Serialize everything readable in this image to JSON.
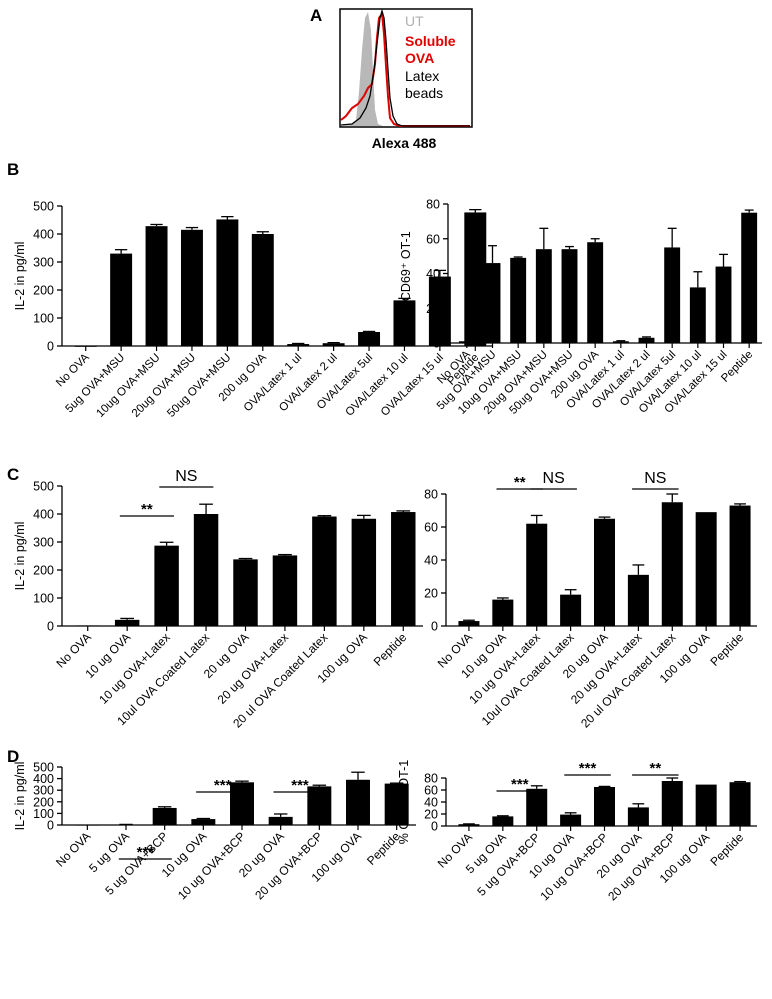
{
  "panel_labels": {
    "A": "A",
    "B": "B",
    "C": "C",
    "D": "D"
  },
  "colors": {
    "bar": "#000000",
    "soluble": "#e00000",
    "ut_fill": "#b8b8b8",
    "latex": "#000000"
  },
  "chart_data": [
    {
      "id": "A",
      "type": "histogram",
      "xlabel": "Alexa 488",
      "legend": [
        "UT",
        "Soluble",
        "OVA",
        "Latex",
        "beads"
      ],
      "series": [
        {
          "name": "UT",
          "style": "filled grey"
        },
        {
          "name": "Soluble OVA",
          "style": "red line"
        },
        {
          "name": "Latex beads",
          "style": "black line"
        }
      ]
    },
    {
      "id": "B-left",
      "type": "bar",
      "ylabel": "IL-2  in pg/ml",
      "ylim": [
        0,
        500
      ],
      "yticks": [
        "0",
        "100",
        "200",
        "300",
        "400",
        "500"
      ],
      "categories": [
        "No OVA",
        "5ug OVA+MSU",
        "10ug OVA+MSU",
        "20ug OVA+MSU",
        "50ug OVA+MSU",
        "200 ug OVA",
        "OVA/Latex 1 ul",
        "OVA/Latex 2 ul",
        "OVA/Latex 5ul",
        "OVA/Latex 10 ul",
        "OVA/Latex 15 ul",
        "Peptide"
      ],
      "values": [
        0,
        330,
        428,
        415,
        452,
        400,
        7,
        10,
        50,
        163,
        248,
        477
      ],
      "errors": [
        0,
        14,
        6,
        8,
        10,
        8,
        2,
        2,
        2,
        7,
        22,
        10
      ],
      "annotations": []
    },
    {
      "id": "B-right",
      "type": "bar",
      "ylabel": "% CD69⁺ OT-1",
      "ylim": [
        0,
        80
      ],
      "yticks": [
        "0",
        "20",
        "40",
        "60",
        "80"
      ],
      "categories": [
        "No OVA",
        "5ug OVA+MSU",
        "10ug OVA+MSU",
        "20ug OVA+MSU",
        "50ug OVA+MSU",
        "200 ug OVA",
        "OVA/Latex 1 ul",
        "OVA/Latex 2 ul",
        "OVA/Latex 5ul",
        "OVA/Latex 10 ul",
        "OVA/Latex 15 ul",
        "Peptide"
      ],
      "values": [
        1,
        46,
        49,
        54,
        54,
        58,
        1,
        3,
        55,
        32,
        44,
        75
      ],
      "errors": [
        0,
        10,
        0.5,
        12,
        1.5,
        2,
        0.3,
        0.5,
        11,
        9,
        7,
        1.5
      ],
      "annotations": []
    },
    {
      "id": "C-left",
      "type": "bar",
      "ylabel": "IL-2  in pg/ml",
      "ylim": [
        0,
        500
      ],
      "yticks": [
        "0",
        "100",
        "200",
        "300",
        "400",
        "500"
      ],
      "categories": [
        "No OVA",
        "10 ug OVA",
        "10 ug OVA+Latex",
        "10ul OVA Coated Latex",
        "20 ug OVA",
        "20 ug OVA+Latex",
        "20 ul OVA Coated Latex",
        "100 ug OVA",
        "Peptide"
      ],
      "values": [
        2,
        22,
        287,
        400,
        238,
        252,
        391,
        383,
        407
      ],
      "errors": [
        0,
        5,
        12,
        35,
        3,
        3,
        3,
        12,
        4
      ],
      "annotations": [
        {
          "text": "**",
          "from": 1,
          "to": 2
        },
        {
          "text": "NS",
          "from": 2,
          "to": 3
        }
      ]
    },
    {
      "id": "C-right",
      "type": "bar",
      "ylabel": "% CD69⁺ OT-1",
      "ylim": [
        0,
        80
      ],
      "yticks": [
        "0",
        "20",
        "40",
        "60",
        "80"
      ],
      "categories": [
        "No OVA",
        "10 ug OVA",
        "10 ug OVA+Latex",
        "10ul OVA Coated Latex",
        "20 ug OVA",
        "20 ug OVA+Latex",
        "20 ul OVA Coated Latex",
        "100 ug OVA",
        "Peptide"
      ],
      "values": [
        3,
        16,
        62,
        19,
        65,
        31,
        75,
        69,
        73
      ],
      "errors": [
        0.5,
        1,
        5,
        3,
        1,
        6,
        5,
        0,
        1
      ],
      "annotations": [
        {
          "text": "**",
          "from": 1,
          "to": 2
        },
        {
          "text": "NS",
          "from": 2,
          "to": 3
        },
        {
          "text": "NS",
          "from": 5,
          "to": 6
        }
      ]
    },
    {
      "id": "D-left",
      "type": "bar",
      "ylabel": "IL-2  in pg/ml",
      "ylim": [
        0,
        500
      ],
      "yticks": [
        "0",
        "100",
        "200",
        "300",
        "400",
        "500"
      ],
      "categories": [
        "No OVA",
        "5 ug OVA",
        "5 ug OVA+BCP",
        "10 ug OVA",
        "10 ug OVA+BCP",
        "20 ug OVA",
        "20 ug OVA+BCP",
        "100 ug OVA",
        "Peptide"
      ],
      "values": [
        2,
        4,
        147,
        51,
        368,
        70,
        333,
        390,
        357
      ],
      "errors": [
        0,
        1,
        10,
        5,
        10,
        25,
        10,
        65,
        4
      ],
      "annotations": [
        {
          "text": "***",
          "from": 1,
          "to": 2
        },
        {
          "text": "***",
          "from": 3,
          "to": 4
        },
        {
          "text": "***",
          "from": 5,
          "to": 6
        }
      ]
    },
    {
      "id": "D-right",
      "type": "bar",
      "ylabel": "% CD69⁺ OT-1",
      "ylim": [
        0,
        80
      ],
      "yticks": [
        "0",
        "20",
        "40",
        "60",
        "80"
      ],
      "categories": [
        "No OVA",
        "5 ug OVA",
        "5 ug OVA+BCP",
        "10 ug OVA",
        "10 ug OVA+BCP",
        "20 ug OVA",
        "20 ug OVA+BCP",
        "100 ug OVA",
        "Peptide"
      ],
      "values": [
        3,
        16,
        62,
        19,
        65,
        31,
        75,
        69,
        73
      ],
      "errors": [
        0.5,
        1,
        5,
        3,
        1,
        6,
        5,
        0,
        1
      ],
      "annotations": [
        {
          "text": "***",
          "from": 1,
          "to": 2
        },
        {
          "text": "***",
          "from": 3,
          "to": 4
        },
        {
          "text": "**",
          "from": 5,
          "to": 6
        }
      ]
    }
  ]
}
